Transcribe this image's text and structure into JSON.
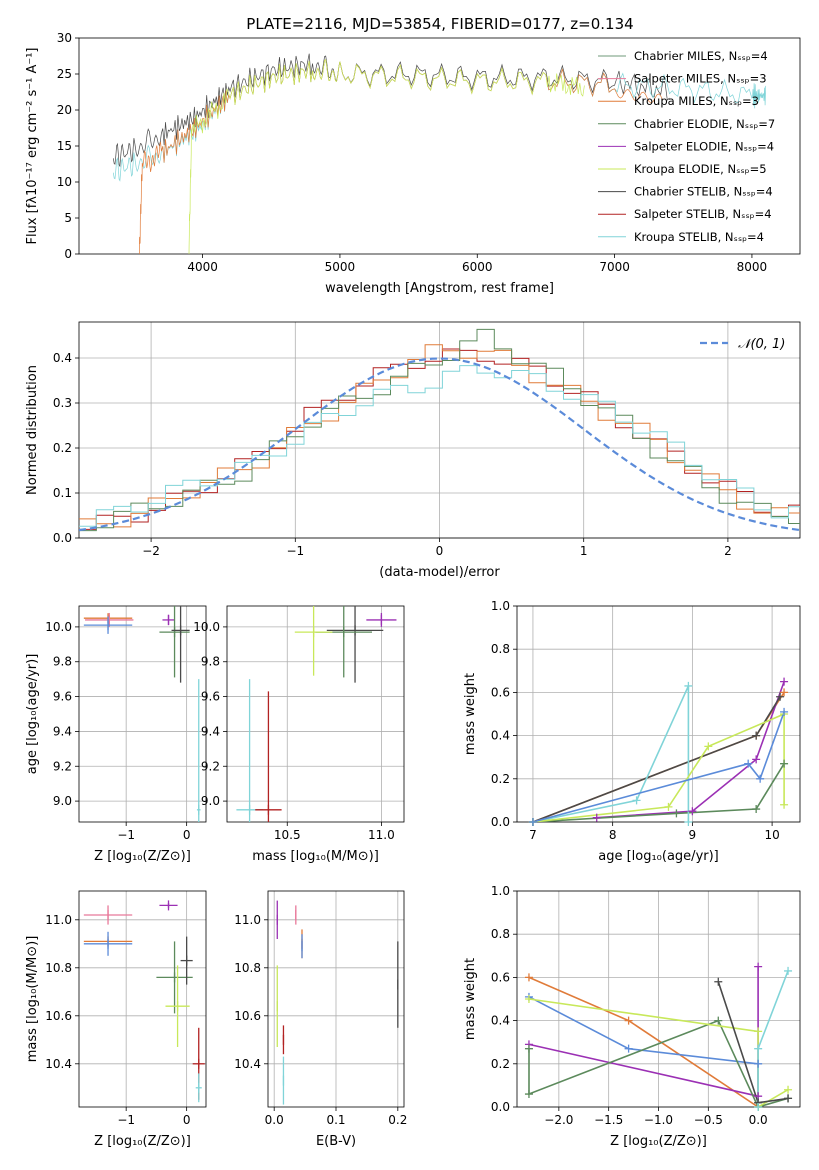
{
  "figure_title": "PLATE=2116, MJD=53854, FIBERID=0177, z=0.134",
  "colors": {
    "Chabrier MILES": "#6f9a78",
    "Salpeter MILES": "#e8799a",
    "Kroupa MILES": "#e07b39",
    "Chabrier ELODIE": "#5c8a5c",
    "Salpeter ELODIE": "#9b30b4",
    "Kroupa ELODIE": "#c8e85a",
    "Chabrier STELIB": "#4a4a4a",
    "Salpeter STELIB": "#b22222",
    "Kroupa STELIB": "#80d4d8",
    "extra_blue": "#5b8bd9"
  },
  "chart_data": [
    {
      "id": "spectrum",
      "type": "line",
      "title": "PLATE=2116, MJD=53854, FIBERID=0177, z=0.134",
      "xlabel": "wavelength [Angstrom, rest frame]",
      "ylabel": "Flux [fλ10⁻¹⁷ erg cm⁻² s⁻¹ A⁻¹]",
      "xlim": [
        3100,
        8350
      ],
      "ylim": [
        0,
        30
      ],
      "xticks": [
        4000,
        5000,
        6000,
        7000,
        8000
      ],
      "yticks": [
        0,
        5,
        10,
        15,
        20,
        25,
        30
      ],
      "legend_position": "right",
      "legend": [
        "Chabrier MILES, Nₛₛₚ=4",
        "Salpeter MILES, Nₛₛₚ=3",
        "Kroupa MILES, Nₛₛₚ=3",
        "Chabrier ELODIE, Nₛₛₚ=7",
        "Salpeter ELODIE, Nₛₛₚ=4",
        "Kroupa ELODIE, Nₛₛₚ=5",
        "Chabrier STELIB, Nₛₛₚ=4",
        "Salpeter STELIB, Nₛₛₚ=4",
        "Kroupa STELIB, Nₛₛₚ=4"
      ],
      "series": [
        {
          "name": "Chabrier STELIB",
          "x": [
            3350,
            3500,
            3700,
            3950,
            4200,
            4500,
            4800,
            5000,
            5500,
            6000,
            6500,
            7000,
            7400
          ],
          "y": [
            13.5,
            14.5,
            16.5,
            19,
            23,
            25.5,
            26.5,
            25,
            25,
            24.5,
            24.5,
            24,
            22.5
          ]
        },
        {
          "name": "Kroupa STELIB",
          "x": [
            3350,
            3500,
            3700,
            3950,
            4200,
            4500,
            4800,
            5000,
            5500,
            6000,
            6500,
            7000,
            7500,
            8000,
            8100
          ],
          "y": [
            11.5,
            12.5,
            14,
            17,
            22,
            24.5,
            25.5,
            25,
            24.5,
            24,
            24,
            23.5,
            23,
            22,
            22
          ]
        },
        {
          "name": "Kroupa MILES",
          "x": [
            3540,
            3560,
            3700,
            3950,
            4200,
            4500,
            4800,
            5000,
            5500,
            6000,
            6500,
            7000,
            7350
          ],
          "y": [
            0,
            12.5,
            14,
            17.5,
            22,
            24.5,
            25.5,
            25,
            24.5,
            24,
            24,
            23.5,
            22.5
          ]
        },
        {
          "name": "Kroupa ELODIE",
          "x": [
            3900,
            3920,
            4200,
            4500,
            4800,
            5000,
            5500,
            6000,
            6500,
            6780
          ],
          "y": [
            0,
            17,
            22,
            24.5,
            25.5,
            25,
            24.5,
            24,
            24,
            23
          ]
        }
      ]
    },
    {
      "id": "residuals",
      "type": "line",
      "xlabel": "(data-model)/error",
      "ylabel": "Normed distribution",
      "xlim": [
        -2.5,
        2.5
      ],
      "ylim": [
        0,
        0.48
      ],
      "xticks": [
        -2,
        -1,
        0,
        1,
        2
      ],
      "yticks": [
        0.0,
        0.1,
        0.2,
        0.3,
        0.4
      ],
      "grid": true,
      "legend_position": "top-right",
      "legend": [
        "𝒩(0, 1)"
      ],
      "series": [
        {
          "name": "𝒩(0, 1)",
          "function": "normal",
          "mu": 0,
          "sigma": 1
        },
        {
          "name": "Salpeter STELIB",
          "x": [
            -2.5,
            -2.1,
            -1.7,
            -1.3,
            -0.9,
            -0.5,
            -0.1,
            0.3,
            0.7,
            1.1,
            1.5,
            1.9,
            2.3
          ],
          "y": [
            0.02,
            0.05,
            0.1,
            0.17,
            0.27,
            0.35,
            0.4,
            0.41,
            0.37,
            0.3,
            0.21,
            0.13,
            0.06
          ]
        },
        {
          "name": "Kroupa MILES",
          "x": [
            -2.5,
            -2.1,
            -1.7,
            -1.3,
            -0.9,
            -0.5,
            -0.1,
            0.3,
            0.7,
            1.1,
            1.5,
            1.9,
            2.3
          ],
          "y": [
            0.02,
            0.05,
            0.11,
            0.16,
            0.25,
            0.33,
            0.41,
            0.42,
            0.36,
            0.29,
            0.22,
            0.12,
            0.05
          ]
        },
        {
          "name": "Chabrier ELODIE",
          "x": [
            -2.5,
            -2.1,
            -1.7,
            -1.3,
            -0.9,
            -0.5,
            -0.1,
            0.3,
            0.7,
            1.1,
            1.5,
            1.9,
            2.3
          ],
          "y": [
            0.02,
            0.06,
            0.1,
            0.15,
            0.26,
            0.32,
            0.38,
            0.45,
            0.38,
            0.3,
            0.2,
            0.11,
            0.05
          ]
        },
        {
          "name": "Kroupa STELIB",
          "x": [
            -2.5,
            -2.1,
            -1.7,
            -1.3,
            -0.9,
            -0.5,
            -0.1,
            0.3,
            0.7,
            1.1,
            1.5,
            1.9,
            2.3
          ],
          "y": [
            0.03,
            0.07,
            0.12,
            0.16,
            0.24,
            0.31,
            0.34,
            0.38,
            0.35,
            0.3,
            0.23,
            0.14,
            0.06
          ]
        }
      ]
    },
    {
      "id": "age_vs_Z",
      "type": "scatter",
      "xlabel": "Z [log₁₀(Z/Z⊙)]",
      "ylabel": "age  [log₁₀(age/yr)]",
      "xlim": [
        -1.78,
        0.32
      ],
      "ylim": [
        8.88,
        10.12
      ],
      "xticks": [
        -1,
        0
      ],
      "yticks": [
        9.0,
        9.2,
        9.4,
        9.6,
        9.8,
        10.0
      ],
      "grid": true,
      "series": [
        {
          "name": "Kroupa MILES",
          "x": -1.3,
          "y": 10.05,
          "xerr": 0.4,
          "yerr": 0
        },
        {
          "name": "Salpeter MILES",
          "x": -1.28,
          "y": 10.04,
          "xerr": 0.4,
          "yerr": 0.04
        },
        {
          "name": "extra_blue",
          "x": -1.3,
          "y": 10.01,
          "xerr": 0.4,
          "yerr": 0.05
        },
        {
          "name": "Salpeter ELODIE",
          "x": -0.3,
          "y": 10.04,
          "xerr": 0.1,
          "yerr": 0.03
        },
        {
          "name": "Chabrier ELODIE",
          "x": -0.2,
          "y": 9.97,
          "xerr": 0.25,
          "yerr": 0.26
        },
        {
          "name": "Chabrier STELIB",
          "x": -0.1,
          "y": 9.98,
          "xerr": 0.15,
          "yerr": 0.3
        },
        {
          "name": "Kroupa STELIB",
          "x": 0.2,
          "y": 8.95,
          "xerr": 0.03,
          "yerr": 0.75
        }
      ]
    },
    {
      "id": "age_vs_mass",
      "type": "scatter",
      "xlabel": "mass [log₁₀(M/M⊙)]",
      "xlim": [
        10.18,
        11.12
      ],
      "ylim": [
        8.88,
        10.12
      ],
      "xticks": [
        10.5,
        11.0
      ],
      "yticks": [
        9.0,
        9.2,
        9.4,
        9.6,
        9.8,
        10.0
      ],
      "grid": true,
      "series": [
        {
          "name": "Salpeter ELODIE",
          "x": 11.0,
          "y": 10.04,
          "xerr": 0.08,
          "yerr": 0.04
        },
        {
          "name": "Chabrier STELIB",
          "x": 10.86,
          "y": 9.98,
          "xerr": 0.15,
          "yerr": 0.3
        },
        {
          "name": "Chabrier ELODIE",
          "x": 10.8,
          "y": 9.97,
          "xerr": 0.15,
          "yerr": 0.26
        },
        {
          "name": "Kroupa ELODIE",
          "x": 10.64,
          "y": 9.97,
          "xerr": 0.1,
          "yerr": 0.25
        },
        {
          "name": "Kroupa STELIB",
          "x": 10.3,
          "y": 8.95,
          "xerr": 0.07,
          "yerr": 0.75
        },
        {
          "name": "Salpeter STELIB",
          "x": 10.4,
          "y": 8.95,
          "xerr": 0.07,
          "yerr": 0.68
        }
      ]
    },
    {
      "id": "mass_weight_vs_age",
      "type": "line",
      "xlabel": "age  [log₁₀(age/yr)]",
      "ylabel": "mass weight",
      "xlim": [
        6.8,
        10.35
      ],
      "ylim": [
        0,
        1.0
      ],
      "xticks": [
        7,
        8,
        9,
        10
      ],
      "yticks": [
        0.0,
        0.2,
        0.4,
        0.6,
        0.8,
        1.0
      ],
      "grid": true,
      "series": [
        {
          "name": "Kroupa MILES",
          "x": [
            7.0,
            9.8,
            10.15
          ],
          "y": [
            0.0,
            0.4,
            0.6
          ]
        },
        {
          "name": "Salpeter ELODIE",
          "x": [
            7.8,
            9.0,
            9.8,
            10.15
          ],
          "y": [
            0.02,
            0.05,
            0.29,
            0.65
          ]
        },
        {
          "name": "Chabrier ELODIE",
          "x": [
            7.0,
            8.8,
            9.8,
            10.15
          ],
          "y": [
            0.0,
            0.04,
            0.06,
            0.27
          ]
        },
        {
          "name": "Chabrier STELIB",
          "x": [
            7.0,
            9.8,
            10.1
          ],
          "y": [
            0.0,
            0.4,
            0.58
          ]
        },
        {
          "name": "Kroupa STELIB",
          "x": [
            7.0,
            8.3,
            8.95,
            8.95
          ],
          "y": [
            0.0,
            0.1,
            0.63,
            0.0
          ]
        },
        {
          "name": "Kroupa ELODIE",
          "x": [
            7.0,
            8.7,
            9.2,
            10.15,
            10.15
          ],
          "y": [
            0.0,
            0.07,
            0.35,
            0.5,
            0.08
          ]
        },
        {
          "name": "extra_blue",
          "x": [
            7.0,
            9.7,
            9.85,
            10.15
          ],
          "y": [
            0.0,
            0.27,
            0.2,
            0.51
          ]
        }
      ]
    },
    {
      "id": "mass_vs_Z",
      "type": "scatter",
      "xlabel": "Z [log₁₀(Z/Z⊙)]",
      "ylabel": "mass [log₁₀(M/M⊙)]",
      "xlim": [
        -1.78,
        0.32
      ],
      "ylim": [
        10.22,
        11.12
      ],
      "xticks": [
        -1,
        0
      ],
      "yticks": [
        10.4,
        10.6,
        10.8,
        11.0
      ],
      "grid": true,
      "series": [
        {
          "name": "Salpeter MILES",
          "x": -1.3,
          "y": 11.02,
          "xerr": 0.4,
          "yerr": 0.04
        },
        {
          "name": "Kroupa MILES",
          "x": -1.3,
          "y": 10.91,
          "xerr": 0.4,
          "yerr": 0.0
        },
        {
          "name": "extra_blue",
          "x": -1.3,
          "y": 10.9,
          "xerr": 0.4,
          "yerr": 0.05
        },
        {
          "name": "Salpeter ELODIE",
          "x": -0.3,
          "y": 11.06,
          "xerr": 0.15,
          "yerr": 0.01
        },
        {
          "name": "Chabrier ELODIE",
          "x": -0.2,
          "y": 10.76,
          "xerr": 0.3,
          "yerr": 0.15
        },
        {
          "name": "Chabrier STELIB",
          "x": 0.0,
          "y": 10.83,
          "xerr": 0.1,
          "yerr": 0.1
        },
        {
          "name": "Kroupa ELODIE",
          "x": -0.15,
          "y": 10.64,
          "xerr": 0.2,
          "yerr": 0.17
        },
        {
          "name": "Salpeter STELIB",
          "x": 0.2,
          "y": 10.4,
          "xerr": 0.1,
          "yerr": 0.15
        },
        {
          "name": "Kroupa STELIB",
          "x": 0.2,
          "y": 10.3,
          "xerr": 0.05,
          "yerr": 0.06
        }
      ]
    },
    {
      "id": "mass_vs_EBV",
      "type": "scatter",
      "xlabel": "E(B-V)",
      "xlim": [
        -0.01,
        0.21
      ],
      "ylim": [
        10.22,
        11.12
      ],
      "xticks": [
        0.0,
        0.1,
        0.2
      ],
      "yticks": [
        10.4,
        10.6,
        10.8,
        11.0
      ],
      "grid": true,
      "series": [
        {
          "name": "Salpeter ELODIE",
          "x": 0.005,
          "y": 11.0,
          "xerr": 0,
          "yerr": 0.08
        },
        {
          "name": "Salpeter MILES",
          "x": 0.035,
          "y": 11.02,
          "xerr": 0,
          "yerr": 0.04
        },
        {
          "name": "Kroupa MILES",
          "x": 0.045,
          "y": 10.9,
          "xerr": 0,
          "yerr": 0.06
        },
        {
          "name": "extra_blue",
          "x": 0.045,
          "y": 10.89,
          "xerr": 0,
          "yerr": 0.05
        },
        {
          "name": "Kroupa ELODIE",
          "x": 0.005,
          "y": 10.64,
          "xerr": 0,
          "yerr": 0.17
        },
        {
          "name": "Salpeter STELIB",
          "x": 0.015,
          "y": 10.5,
          "xerr": 0,
          "yerr": 0.06
        },
        {
          "name": "Kroupa STELIB",
          "x": 0.015,
          "y": 10.33,
          "xerr": 0,
          "yerr": 0.1
        },
        {
          "name": "Chabrier STELIB",
          "x": 0.2,
          "y": 10.73,
          "xerr": 0,
          "yerr": 0.18
        }
      ]
    },
    {
      "id": "mass_weight_vs_Z",
      "type": "line",
      "xlabel": "Z [log₁₀(Z/Z⊙)]",
      "ylabel": "mass weight",
      "xlim": [
        -2.42,
        0.42
      ],
      "ylim": [
        0,
        1.0
      ],
      "xticks": [
        -2.0,
        -1.5,
        -1.0,
        -0.5,
        0.0
      ],
      "yticks": [
        0.0,
        0.2,
        0.4,
        0.6,
        0.8,
        1.0
      ],
      "grid": true,
      "series": [
        {
          "name": "Kroupa MILES",
          "x": [
            -2.3,
            -1.3,
            0.0
          ],
          "y": [
            0.6,
            0.4,
            0.0
          ]
        },
        {
          "name": "extra_blue",
          "x": [
            -2.3,
            -1.3,
            0.0,
            0.0
          ],
          "y": [
            0.51,
            0.27,
            0.2,
            0.0
          ]
        },
        {
          "name": "Salpeter ELODIE",
          "x": [
            -2.3,
            0.0,
            0.0
          ],
          "y": [
            0.29,
            0.05,
            0.65
          ]
        },
        {
          "name": "Chabrier ELODIE",
          "x": [
            -2.3,
            -2.3,
            -0.4,
            0.0,
            0.3
          ],
          "y": [
            0.27,
            0.06,
            0.4,
            0.0,
            0.04
          ]
        },
        {
          "name": "Kroupa ELODIE",
          "x": [
            -2.3,
            0.0,
            0.0,
            0.3
          ],
          "y": [
            0.5,
            0.35,
            0.0,
            0.08
          ]
        },
        {
          "name": "Chabrier STELIB",
          "x": [
            -0.4,
            0.0,
            0.3
          ],
          "y": [
            0.58,
            0.02,
            0.04
          ]
        },
        {
          "name": "Kroupa STELIB",
          "x": [
            0.0,
            0.0,
            0.3
          ],
          "y": [
            0.0,
            0.27,
            0.63
          ]
        }
      ]
    }
  ]
}
